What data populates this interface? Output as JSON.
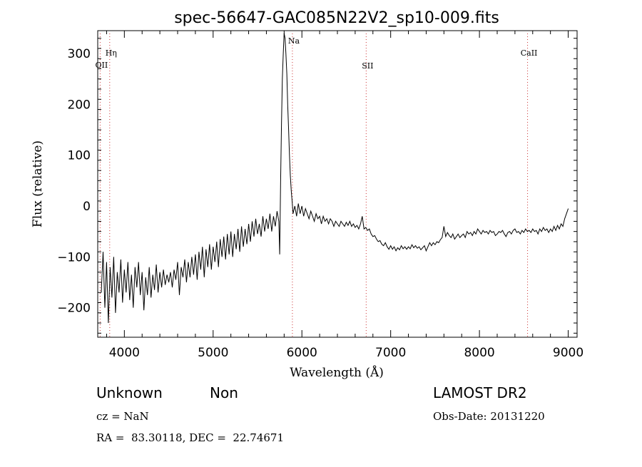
{
  "chart_data": {
    "type": "line",
    "title": "spec-56647-GAC085N22V2_sp10-009.fits",
    "xlabel": "Wavelength (Å)",
    "ylabel": "Flux (relative)",
    "xlim": [
      3700,
      9100
    ],
    "ylim": [
      -258,
      345
    ],
    "x_ticks": [
      4000,
      5000,
      6000,
      7000,
      8000,
      9000
    ],
    "y_ticks": [
      -200,
      -100,
      0,
      100,
      200,
      300
    ],
    "grid": false,
    "series": [
      {
        "color": "#000000",
        "points": [
          [
            3740,
            -170
          ],
          [
            3760,
            -90
          ],
          [
            3780,
            -200
          ],
          [
            3800,
            -110
          ],
          [
            3820,
            -230
          ],
          [
            3840,
            -120
          ],
          [
            3860,
            -180
          ],
          [
            3880,
            -100
          ],
          [
            3900,
            -210
          ],
          [
            3920,
            -130
          ],
          [
            3940,
            -170
          ],
          [
            3960,
            -105
          ],
          [
            3980,
            -190
          ],
          [
            4000,
            -125
          ],
          [
            4020,
            -170
          ],
          [
            4040,
            -110
          ],
          [
            4060,
            -185
          ],
          [
            4080,
            -135
          ],
          [
            4100,
            -200
          ],
          [
            4120,
            -120
          ],
          [
            4140,
            -160
          ],
          [
            4160,
            -110
          ],
          [
            4180,
            -175
          ],
          [
            4200,
            -130
          ],
          [
            4220,
            -205
          ],
          [
            4240,
            -140
          ],
          [
            4260,
            -175
          ],
          [
            4280,
            -120
          ],
          [
            4300,
            -180
          ],
          [
            4320,
            -135
          ],
          [
            4340,
            -165
          ],
          [
            4360,
            -115
          ],
          [
            4380,
            -170
          ],
          [
            4400,
            -130
          ],
          [
            4420,
            -160
          ],
          [
            4440,
            -125
          ],
          [
            4460,
            -155
          ],
          [
            4480,
            -135
          ],
          [
            4500,
            -150
          ],
          [
            4520,
            -130
          ],
          [
            4540,
            -160
          ],
          [
            4560,
            -125
          ],
          [
            4580,
            -145
          ],
          [
            4600,
            -110
          ],
          [
            4620,
            -175
          ],
          [
            4640,
            -120
          ],
          [
            4660,
            -140
          ],
          [
            4680,
            -105
          ],
          [
            4700,
            -150
          ],
          [
            4720,
            -110
          ],
          [
            4740,
            -140
          ],
          [
            4760,
            -100
          ],
          [
            4780,
            -135
          ],
          [
            4800,
            -95
          ],
          [
            4820,
            -145
          ],
          [
            4840,
            -90
          ],
          [
            4860,
            -125
          ],
          [
            4880,
            -80
          ],
          [
            4900,
            -140
          ],
          [
            4920,
            -85
          ],
          [
            4940,
            -120
          ],
          [
            4960,
            -75
          ],
          [
            4980,
            -125
          ],
          [
            5000,
            -80
          ],
          [
            5020,
            -110
          ],
          [
            5040,
            -70
          ],
          [
            5060,
            -120
          ],
          [
            5080,
            -65
          ],
          [
            5100,
            -100
          ],
          [
            5120,
            -60
          ],
          [
            5140,
            -105
          ],
          [
            5160,
            -55
          ],
          [
            5180,
            -95
          ],
          [
            5200,
            -50
          ],
          [
            5220,
            -100
          ],
          [
            5240,
            -55
          ],
          [
            5260,
            -85
          ],
          [
            5280,
            -45
          ],
          [
            5300,
            -90
          ],
          [
            5320,
            -40
          ],
          [
            5340,
            -80
          ],
          [
            5360,
            -45
          ],
          [
            5380,
            -75
          ],
          [
            5400,
            -35
          ],
          [
            5420,
            -70
          ],
          [
            5440,
            -30
          ],
          [
            5460,
            -60
          ],
          [
            5480,
            -25
          ],
          [
            5500,
            -55
          ],
          [
            5520,
            -35
          ],
          [
            5540,
            -60
          ],
          [
            5560,
            -20
          ],
          [
            5580,
            -50
          ],
          [
            5600,
            -25
          ],
          [
            5620,
            -45
          ],
          [
            5640,
            -15
          ],
          [
            5660,
            -50
          ],
          [
            5680,
            -20
          ],
          [
            5700,
            -40
          ],
          [
            5720,
            -10
          ],
          [
            5740,
            -30
          ],
          [
            5750,
            -95
          ],
          [
            5760,
            50
          ],
          [
            5770,
            160
          ],
          [
            5780,
            250
          ],
          [
            5790,
            300
          ],
          [
            5800,
            340
          ],
          [
            5810,
            330
          ],
          [
            5820,
            300
          ],
          [
            5830,
            260
          ],
          [
            5840,
            200
          ],
          [
            5850,
            150
          ],
          [
            5860,
            100
          ],
          [
            5870,
            60
          ],
          [
            5880,
            30
          ],
          [
            5890,
            10
          ],
          [
            5900,
            -15
          ],
          [
            5920,
            0
          ],
          [
            5940,
            -20
          ],
          [
            5960,
            5
          ],
          [
            5980,
            -15
          ],
          [
            6000,
            0
          ],
          [
            6020,
            -20
          ],
          [
            6040,
            -5
          ],
          [
            6060,
            -15
          ],
          [
            6080,
            -25
          ],
          [
            6100,
            -10
          ],
          [
            6120,
            -20
          ],
          [
            6140,
            -30
          ],
          [
            6160,
            -15
          ],
          [
            6180,
            -25
          ],
          [
            6200,
            -20
          ],
          [
            6220,
            -35
          ],
          [
            6240,
            -20
          ],
          [
            6260,
            -30
          ],
          [
            6280,
            -25
          ],
          [
            6300,
            -35
          ],
          [
            6320,
            -25
          ],
          [
            6340,
            -30
          ],
          [
            6360,
            -40
          ],
          [
            6380,
            -30
          ],
          [
            6400,
            -35
          ],
          [
            6420,
            -40
          ],
          [
            6440,
            -30
          ],
          [
            6460,
            -35
          ],
          [
            6480,
            -40
          ],
          [
            6500,
            -32
          ],
          [
            6520,
            -38
          ],
          [
            6540,
            -30
          ],
          [
            6560,
            -40
          ],
          [
            6580,
            -35
          ],
          [
            6600,
            -42
          ],
          [
            6620,
            -38
          ],
          [
            6640,
            -45
          ],
          [
            6660,
            -35
          ],
          [
            6680,
            -20
          ],
          [
            6700,
            -45
          ],
          [
            6720,
            -42
          ],
          [
            6740,
            -48
          ],
          [
            6760,
            -45
          ],
          [
            6780,
            -55
          ],
          [
            6800,
            -60
          ],
          [
            6820,
            -58
          ],
          [
            6840,
            -65
          ],
          [
            6860,
            -70
          ],
          [
            6880,
            -68
          ],
          [
            6900,
            -75
          ],
          [
            6920,
            -78
          ],
          [
            6940,
            -72
          ],
          [
            6960,
            -80
          ],
          [
            6980,
            -85
          ],
          [
            7000,
            -78
          ],
          [
            7020,
            -85
          ],
          [
            7040,
            -80
          ],
          [
            7060,
            -88
          ],
          [
            7080,
            -82
          ],
          [
            7100,
            -86
          ],
          [
            7120,
            -78
          ],
          [
            7140,
            -84
          ],
          [
            7160,
            -80
          ],
          [
            7180,
            -85
          ],
          [
            7200,
            -80
          ],
          [
            7220,
            -84
          ],
          [
            7240,
            -76
          ],
          [
            7260,
            -82
          ],
          [
            7280,
            -78
          ],
          [
            7300,
            -83
          ],
          [
            7320,
            -80
          ],
          [
            7340,
            -86
          ],
          [
            7360,
            -82
          ],
          [
            7380,
            -78
          ],
          [
            7400,
            -88
          ],
          [
            7420,
            -80
          ],
          [
            7440,
            -72
          ],
          [
            7460,
            -78
          ],
          [
            7480,
            -72
          ],
          [
            7500,
            -76
          ],
          [
            7520,
            -70
          ],
          [
            7540,
            -72
          ],
          [
            7560,
            -66
          ],
          [
            7580,
            -62
          ],
          [
            7600,
            -40
          ],
          [
            7620,
            -60
          ],
          [
            7640,
            -52
          ],
          [
            7660,
            -58
          ],
          [
            7680,
            -62
          ],
          [
            7700,
            -55
          ],
          [
            7720,
            -65
          ],
          [
            7740,
            -60
          ],
          [
            7760,
            -55
          ],
          [
            7780,
            -62
          ],
          [
            7800,
            -58
          ],
          [
            7820,
            -55
          ],
          [
            7840,
            -62
          ],
          [
            7860,
            -50
          ],
          [
            7880,
            -55
          ],
          [
            7900,
            -52
          ],
          [
            7920,
            -58
          ],
          [
            7940,
            -50
          ],
          [
            7960,
            -55
          ],
          [
            7980,
            -45
          ],
          [
            8000,
            -50
          ],
          [
            8020,
            -55
          ],
          [
            8040,
            -48
          ],
          [
            8060,
            -52
          ],
          [
            8080,
            -50
          ],
          [
            8100,
            -55
          ],
          [
            8120,
            -48
          ],
          [
            8140,
            -52
          ],
          [
            8160,
            -50
          ],
          [
            8180,
            -58
          ],
          [
            8200,
            -55
          ],
          [
            8220,
            -50
          ],
          [
            8240,
            -52
          ],
          [
            8260,
            -48
          ],
          [
            8280,
            -55
          ],
          [
            8300,
            -60
          ],
          [
            8320,
            -52
          ],
          [
            8340,
            -50
          ],
          [
            8360,
            -55
          ],
          [
            8380,
            -48
          ],
          [
            8400,
            -45
          ],
          [
            8420,
            -52
          ],
          [
            8440,
            -50
          ],
          [
            8460,
            -55
          ],
          [
            8480,
            -48
          ],
          [
            8500,
            -52
          ],
          [
            8520,
            -45
          ],
          [
            8540,
            -50
          ],
          [
            8560,
            -48
          ],
          [
            8580,
            -52
          ],
          [
            8600,
            -45
          ],
          [
            8620,
            -50
          ],
          [
            8640,
            -48
          ],
          [
            8660,
            -55
          ],
          [
            8680,
            -45
          ],
          [
            8700,
            -50
          ],
          [
            8720,
            -42
          ],
          [
            8740,
            -48
          ],
          [
            8760,
            -45
          ],
          [
            8780,
            -52
          ],
          [
            8800,
            -45
          ],
          [
            8820,
            -50
          ],
          [
            8840,
            -40
          ],
          [
            8860,
            -48
          ],
          [
            8880,
            -38
          ],
          [
            8900,
            -45
          ],
          [
            8920,
            -35
          ],
          [
            8940,
            -40
          ],
          [
            8960,
            -25
          ],
          [
            8980,
            -15
          ],
          [
            9000,
            -5
          ]
        ]
      }
    ],
    "line_markers": [
      {
        "label": "OII",
        "x": 3727
      },
      {
        "label": "Hη",
        "x": 3835
      },
      {
        "label": "Na",
        "x": 5893
      },
      {
        "label": "SII",
        "x": 6724
      },
      {
        "label": "CaII",
        "x": 8542
      }
    ],
    "marker_color": "#cc3333"
  },
  "info": {
    "classification": "Unknown",
    "subclass": "Non",
    "survey": "LAMOST DR2",
    "redshift": "cz = NaN",
    "obs_date": "Obs-Date: 20131220",
    "coords": "RA =  83.30118, DEC =  22.74671"
  }
}
